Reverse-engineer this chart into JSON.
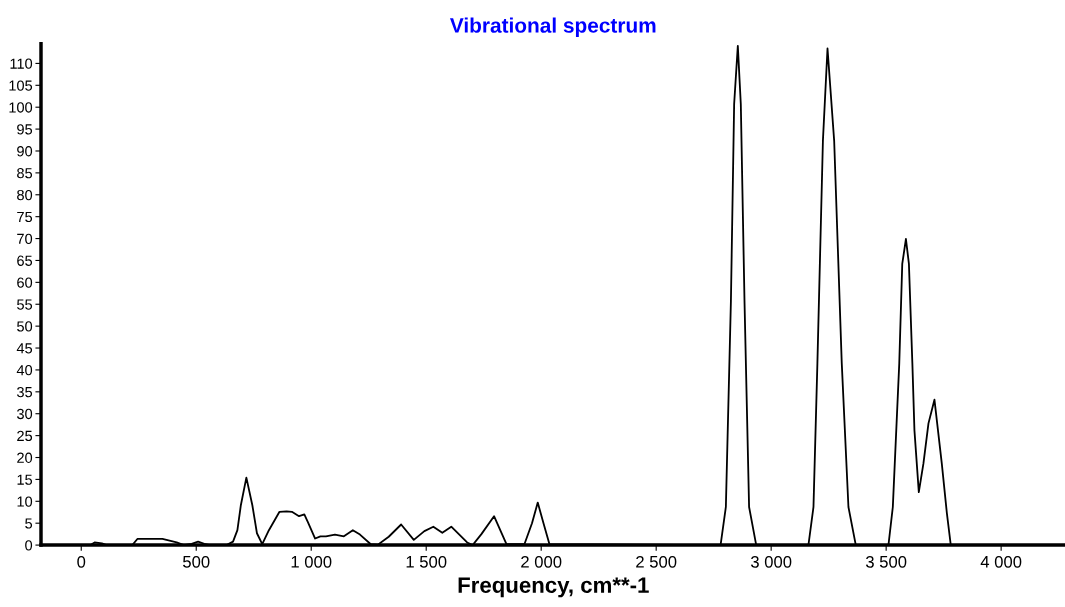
{
  "chart_data": {
    "type": "line",
    "title": "Vibrational spectrum",
    "xlabel": "Frequency, cm**-1",
    "xlim": [
      -175,
      4280
    ],
    "ylim": [
      0,
      114.5
    ],
    "xticks": [
      0,
      500,
      {
        "value": 1000,
        "label": "1 000"
      },
      {
        "value": 1500,
        "label": "1 500"
      },
      {
        "value": 2000,
        "label": "2 000"
      },
      {
        "value": 2500,
        "label": "2 500"
      },
      {
        "value": 3000,
        "label": "3 000"
      },
      {
        "value": 3500,
        "label": "3 500"
      },
      {
        "value": 4000,
        "label": "4 000"
      }
    ],
    "yticks": [
      0,
      5,
      10,
      15,
      20,
      25,
      30,
      35,
      40,
      45,
      50,
      55,
      60,
      65,
      70,
      75,
      80,
      85,
      90,
      95,
      100,
      105,
      110
    ],
    "grid": false,
    "legend": false,
    "marker": "none",
    "line_style": "solid",
    "series": [
      {
        "color": "#000000",
        "x": [
          0,
          40,
          58,
          90,
          110,
          222,
          244,
          300,
          353,
          415,
          446,
          480,
          508,
          535,
          560,
          632,
          660,
          679,
          694,
          718,
          744,
          764,
          787,
          816,
          862,
          893,
          916,
          947,
          970,
          986,
          1017,
          1040,
          1064,
          1103,
          1142,
          1181,
          1212,
          1259,
          1290,
          1337,
          1391,
          1446,
          1492,
          1531,
          1570,
          1609,
          1678,
          1702,
          1740,
          1795,
          1849,
          1927,
          1960,
          1985,
          2010,
          2036,
          2780,
          2803,
          2825,
          2839,
          2855,
          2868,
          2884,
          2904,
          2935,
          3162,
          3184,
          3201,
          3225,
          3245,
          3274,
          3307,
          3336,
          3368,
          3510,
          3529,
          3557,
          3570,
          3586,
          3599,
          3614,
          3623,
          3642,
          3662,
          3684,
          3710,
          3742,
          3764,
          3781,
          4280
        ],
        "values": [
          0,
          0,
          0.6,
          0.4,
          0,
          0,
          1.4,
          1.4,
          1.4,
          0.6,
          0,
          0.3,
          0.8,
          0.3,
          0,
          0,
          0.8,
          3.4,
          9.1,
          15.4,
          9.1,
          2.7,
          0.2,
          3.4,
          7.6,
          7.7,
          7.6,
          6.6,
          7.0,
          5.2,
          1.5,
          2.0,
          2.0,
          2.4,
          2.0,
          3.4,
          2.4,
          0.2,
          0.1,
          1.9,
          4.7,
          1.2,
          3.2,
          4.2,
          2.8,
          4.2,
          0.6,
          0,
          2.5,
          6.6,
          0.2,
          0.2,
          5.0,
          9.7,
          5.0,
          0.2,
          0,
          8.7,
          55.8,
          100.7,
          114,
          100.7,
          55.8,
          8.7,
          0,
          0,
          8.7,
          41.5,
          92.3,
          113.4,
          92.3,
          41.5,
          8.7,
          0,
          0,
          8.7,
          41.5,
          64.2,
          69.9,
          64.2,
          41.5,
          26.2,
          12.1,
          18.6,
          27.8,
          33.2,
          18.6,
          7.3,
          0,
          0
        ]
      }
    ]
  }
}
